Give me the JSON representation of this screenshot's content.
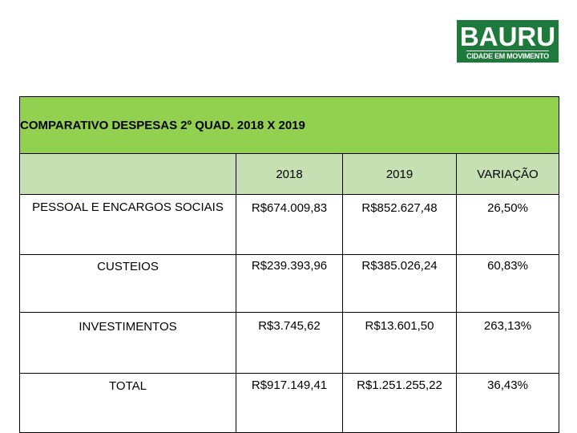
{
  "logo": {
    "word": "BAURU",
    "tagline": "CIDADE EM MOVIMENTO"
  },
  "table": {
    "title": "COMPARATIVO DESPESAS 2º QUAD. 2018 X 2019",
    "headers": [
      "",
      "2018",
      "2019",
      "VARIAÇÃO"
    ],
    "rows": [
      {
        "label": "PESSOAL E ENCARGOS SOCIAIS",
        "v2018": "R$674.009,83",
        "v2019": "R$852.627,48",
        "variacao": "26,50%"
      },
      {
        "label": "CUSTEIOS",
        "v2018": "R$239.393,96",
        "v2019": "R$385.026,24",
        "variacao": "60,83%"
      },
      {
        "label": "INVESTIMENTOS",
        "v2018": "R$3.745,62",
        "v2019": "R$13.601,50",
        "variacao": "263,13%"
      },
      {
        "label": "TOTAL",
        "v2018": "R$917.149,41",
        "v2019": "R$1.251.255,22",
        "variacao": "36,43%"
      }
    ]
  },
  "colors": {
    "logo_green": "#1d7a3a",
    "title_green": "#92d050",
    "header_green": "#c6e0b4"
  }
}
